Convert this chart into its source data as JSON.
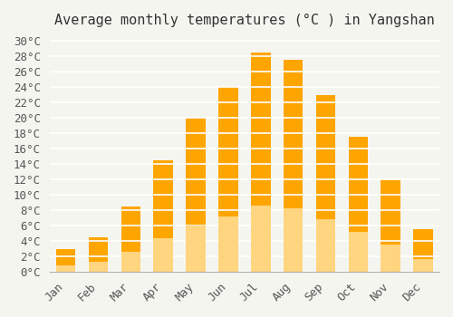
{
  "title": "Average monthly temperatures (°C ) in Yangshan",
  "months": [
    "Jan",
    "Feb",
    "Mar",
    "Apr",
    "May",
    "Jun",
    "Jul",
    "Aug",
    "Sep",
    "Oct",
    "Nov",
    "Dec"
  ],
  "temperatures": [
    3.0,
    4.5,
    8.5,
    14.5,
    20.0,
    24.0,
    28.5,
    27.5,
    23.0,
    17.5,
    12.0,
    5.5
  ],
  "bar_color_top": "#FFA500",
  "bar_color_bottom": "#FFD580",
  "ylim": [
    0,
    30
  ],
  "ytick_step": 2,
  "background_color": "#f5f5f0",
  "grid_color": "#ffffff",
  "title_fontsize": 11,
  "tick_fontsize": 9,
  "font_family": "monospace"
}
